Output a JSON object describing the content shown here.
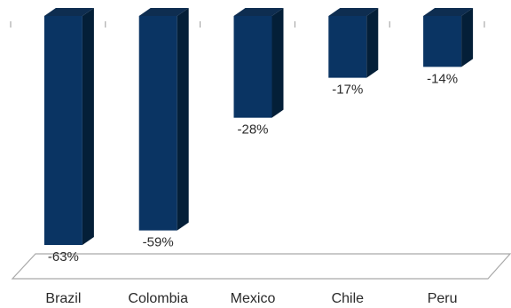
{
  "chart_data": {
    "type": "bar",
    "style": "3d-column",
    "categories": [
      "Brazil",
      "Colombia",
      "Mexico",
      "Chile",
      "Peru"
    ],
    "values": [
      -63,
      -59,
      -28,
      -17,
      -14
    ],
    "data_labels": [
      "-63%",
      "-59%",
      "-28%",
      "-17%",
      "-14%"
    ],
    "ylim": [
      -63,
      0
    ],
    "grid": false,
    "legend": "none",
    "colors": {
      "bar_front": "#0a3463",
      "bar_side": "#041f38",
      "bar_top": "#0e2d50",
      "floor_stroke": "#a9a9a9",
      "tick": "#9a9a9a"
    }
  }
}
